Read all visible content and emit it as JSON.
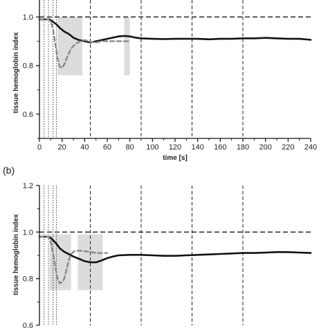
{
  "chart_data": [
    {
      "type": "line",
      "panel_label": "",
      "xlabel": "time [s]",
      "ylabel": "tissue hemoglobin index",
      "xlim": [
        0,
        240
      ],
      "ylim": [
        0.5,
        1.07
      ],
      "xticks": [
        0,
        20,
        40,
        60,
        80,
        100,
        120,
        140,
        160,
        180,
        200,
        220,
        240
      ],
      "xtick_labels": [
        "0",
        "20",
        "40",
        "60",
        "80",
        "100",
        "120",
        "140",
        "160",
        "180",
        "200",
        "220",
        "240"
      ],
      "yticks": [
        0.6,
        0.8,
        1.0
      ],
      "ytick_labels": [
        "0.6",
        "0.8",
        "1.0"
      ],
      "reference_line_y": 1.0,
      "dotted_vlines": [
        4,
        8,
        12,
        15
      ],
      "dashed_vlines": [
        45,
        90,
        135,
        180
      ],
      "shaded_regions": [
        {
          "x0": 16,
          "x1": 38,
          "y0": 0.76,
          "y1": 1.0
        },
        {
          "x0": 75,
          "x1": 80,
          "y0": 0.76,
          "y1": 1.0
        }
      ],
      "series": [
        {
          "style": "solid",
          "color": "#111111",
          "x": [
            0,
            3,
            6,
            9,
            12,
            15,
            18,
            22,
            26,
            30,
            35,
            40,
            45,
            50,
            55,
            60,
            65,
            70,
            75,
            80,
            85,
            90,
            100,
            110,
            120,
            130,
            140,
            150,
            160,
            170,
            180,
            190,
            200,
            210,
            220,
            230,
            240
          ],
          "y": [
            0.99,
            0.99,
            0.99,
            0.99,
            0.98,
            0.97,
            0.955,
            0.94,
            0.93,
            0.915,
            0.905,
            0.9,
            0.895,
            0.9,
            0.905,
            0.91,
            0.915,
            0.92,
            0.922,
            0.92,
            0.915,
            0.912,
            0.91,
            0.909,
            0.91,
            0.91,
            0.91,
            0.908,
            0.91,
            0.91,
            0.912,
            0.912,
            0.914,
            0.912,
            0.91,
            0.91,
            0.906
          ]
        },
        {
          "style": "dashed",
          "color": "#888888",
          "x": [
            0,
            4,
            8,
            10,
            12,
            14,
            16,
            18,
            20,
            22,
            25,
            28,
            32,
            36,
            40,
            45,
            50,
            55,
            60,
            65,
            70,
            75,
            80
          ],
          "y": [
            0.99,
            0.99,
            0.99,
            0.98,
            0.95,
            0.89,
            0.83,
            0.795,
            0.79,
            0.805,
            0.84,
            0.87,
            0.89,
            0.9,
            0.905,
            0.898,
            0.895,
            0.9,
            0.9,
            0.9,
            0.9,
            0.9,
            0.9
          ]
        }
      ]
    },
    {
      "type": "line",
      "panel_label": "(b)",
      "xlabel": "",
      "ylabel": "tissue hemoglobin index",
      "xlim": [
        0,
        240
      ],
      "ylim": [
        0.6,
        1.2
      ],
      "yticks": [
        0.6,
        0.8,
        1.0,
        1.2
      ],
      "ytick_labels": [
        "0.6",
        "0.8",
        "1.0",
        "1.2"
      ],
      "reference_line_y": 1.0,
      "dotted_vlines": [
        4,
        8,
        12,
        15
      ],
      "dashed_vlines": [
        45,
        90,
        135,
        180
      ],
      "shaded_regions": [
        {
          "x0": 9,
          "x1": 28,
          "y0": 0.75,
          "y1": 0.99
        },
        {
          "x0": 34,
          "x1": 56,
          "y0": 0.75,
          "y1": 0.99
        }
      ],
      "series": [
        {
          "style": "solid",
          "color": "#111111",
          "x": [
            0,
            4,
            8,
            10,
            12,
            15,
            18,
            22,
            26,
            30,
            35,
            40,
            45,
            50,
            55,
            60,
            65,
            70,
            80,
            90,
            100,
            110,
            120,
            130,
            140,
            150,
            160,
            170,
            180,
            190,
            200,
            210,
            220,
            230,
            240
          ],
          "y": [
            0.98,
            0.98,
            0.98,
            0.975,
            0.965,
            0.95,
            0.93,
            0.915,
            0.905,
            0.895,
            0.885,
            0.875,
            0.87,
            0.87,
            0.878,
            0.888,
            0.895,
            0.9,
            0.902,
            0.902,
            0.9,
            0.898,
            0.898,
            0.9,
            0.902,
            0.904,
            0.906,
            0.908,
            0.91,
            0.91,
            0.912,
            0.914,
            0.914,
            0.912,
            0.91
          ]
        },
        {
          "style": "dashed",
          "color": "#888888",
          "x": [
            0,
            4,
            8,
            10,
            12,
            14,
            16,
            18,
            20,
            22,
            24,
            26,
            28,
            30,
            33,
            36,
            40,
            44,
            48,
            52,
            56,
            60
          ],
          "y": [
            0.98,
            0.98,
            0.98,
            0.96,
            0.91,
            0.85,
            0.8,
            0.78,
            0.785,
            0.8,
            0.84,
            0.88,
            0.905,
            0.915,
            0.92,
            0.92,
            0.918,
            0.915,
            0.912,
            0.91,
            0.91,
            0.91
          ]
        }
      ]
    }
  ]
}
